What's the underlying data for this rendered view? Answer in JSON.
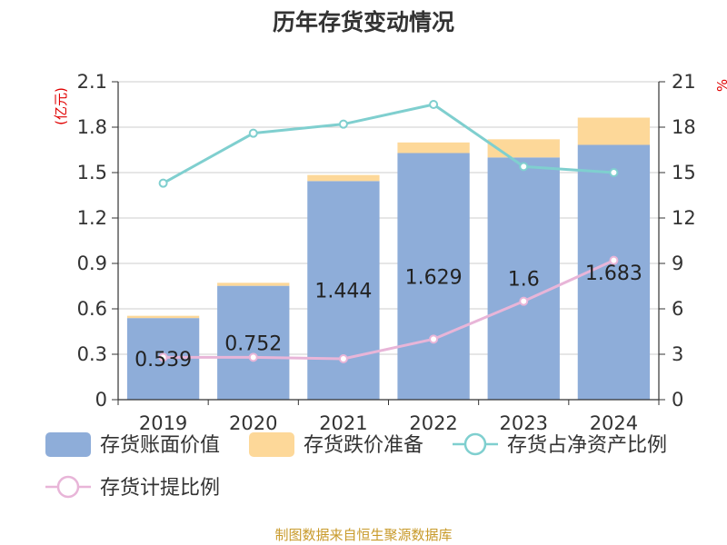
{
  "chart_data": {
    "type": "bar",
    "title": "历年存货变动情况",
    "y_unit_left": "(亿元)",
    "y_unit_right": "%",
    "categories": [
      "2019",
      "2020",
      "2021",
      "2022",
      "2023",
      "2024"
    ],
    "ylim_left": [
      0,
      2.1
    ],
    "yticks_left": [
      "0",
      "0.3",
      "0.6",
      "0.9",
      "1.2",
      "1.5",
      "1.8",
      "2.1"
    ],
    "ylim_right": [
      0,
      21
    ],
    "yticks_right": [
      "0",
      "3",
      "6",
      "9",
      "12",
      "15",
      "18",
      "21"
    ],
    "stacked": true,
    "grid": true,
    "legend_position": "bottom",
    "series": [
      {
        "name": "存货账面价值",
        "kind": "bar",
        "axis": "left",
        "color": "#8eadd9",
        "values": [
          0.539,
          0.752,
          1.444,
          1.629,
          1.6,
          1.683
        ],
        "labels": [
          "0.539",
          "0.752",
          "1.444",
          "1.629",
          "1.6",
          "1.683"
        ]
      },
      {
        "name": "存货跌价准备",
        "kind": "bar",
        "axis": "left",
        "color": "#fdd899",
        "values": [
          0.015,
          0.02,
          0.04,
          0.07,
          0.12,
          0.18
        ]
      },
      {
        "name": "存货占净资产比例",
        "kind": "line",
        "axis": "right",
        "color": "#7fcfcf",
        "values": [
          14.3,
          17.6,
          18.2,
          19.5,
          15.4,
          15.0
        ]
      },
      {
        "name": "存货计提比例",
        "kind": "line",
        "axis": "right",
        "color": "#e8b5d8",
        "values": [
          2.8,
          2.8,
          2.7,
          4.0,
          6.5,
          9.2
        ]
      }
    ],
    "source": "制图数据来自恒生聚源数据库"
  }
}
